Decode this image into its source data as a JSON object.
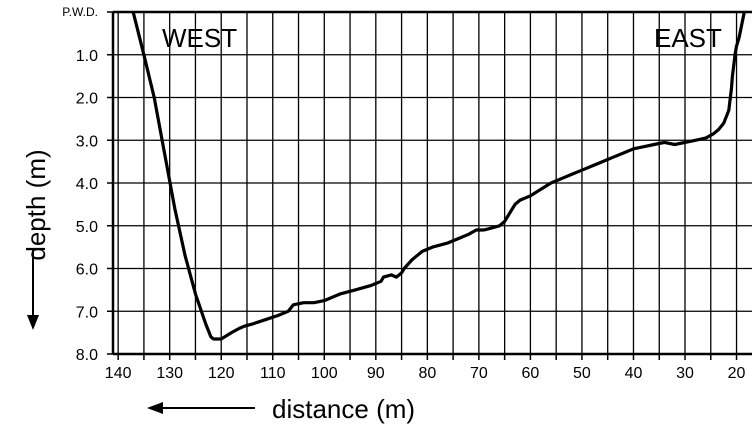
{
  "chart_data": {
    "type": "line",
    "x": [
      137.5,
      135,
      133,
      131,
      129,
      127,
      125,
      123,
      122,
      121.5,
      121,
      120,
      118,
      116.5,
      115.5,
      114,
      111.5,
      109,
      107,
      106,
      104,
      102,
      100,
      97,
      94,
      91,
      89,
      88.5,
      87,
      86,
      85,
      84.5,
      83,
      82,
      81,
      79,
      76,
      74,
      72,
      70.5,
      69,
      67.5,
      66,
      65,
      64,
      63,
      62,
      60,
      58,
      56,
      54,
      52,
      50,
      48,
      46,
      44,
      42,
      40,
      38,
      36,
      34,
      32,
      30,
      28,
      26,
      24.5,
      23.5,
      22.5,
      21.5,
      21,
      20.8,
      20.5,
      20.3,
      20,
      19.5,
      19,
      18.5
    ],
    "y": [
      -0.2,
      1.0,
      2.0,
      3.3,
      4.6,
      5.7,
      6.6,
      7.3,
      7.6,
      7.65,
      7.65,
      7.65,
      7.5,
      7.4,
      7.35,
      7.3,
      7.2,
      7.1,
      7.0,
      6.85,
      6.8,
      6.8,
      6.75,
      6.6,
      6.5,
      6.4,
      6.3,
      6.2,
      6.15,
      6.2,
      6.1,
      6.0,
      5.8,
      5.7,
      5.6,
      5.5,
      5.4,
      5.3,
      5.2,
      5.1,
      5.1,
      5.05,
      5.0,
      4.9,
      4.7,
      4.5,
      4.4,
      4.3,
      4.15,
      4.0,
      3.9,
      3.8,
      3.7,
      3.6,
      3.5,
      3.4,
      3.3,
      3.2,
      3.15,
      3.1,
      3.05,
      3.1,
      3.05,
      3.0,
      2.95,
      2.85,
      2.75,
      2.6,
      2.3,
      1.8,
      1.5,
      1.2,
      1.0,
      0.8,
      0.6,
      0.3,
      0.0
    ],
    "x_ticks": [
      140,
      130,
      120,
      110,
      100,
      90,
      80,
      70,
      60,
      50,
      40,
      30,
      20
    ],
    "x_tick_labels": [
      "140",
      "130",
      "120",
      "110",
      "100",
      "90",
      "80",
      "70",
      "60",
      "50",
      "40",
      "30",
      "20"
    ],
    "y_ticks": [
      0,
      1,
      2,
      3,
      4,
      5,
      6,
      7,
      8
    ],
    "y_tick_labels": [
      "P.W.D.",
      "1.0",
      "2.0",
      "3.0",
      "4.0",
      "5.0",
      "6.0",
      "7.0",
      "8.0"
    ],
    "xlabel": "distance (m)",
    "ylabel": "depth (m)",
    "xlim": [
      141,
      17
    ],
    "ylim": [
      0,
      8
    ],
    "x_grid_step": 5,
    "y_grid_step": 1,
    "grid": true,
    "x_reversed": true,
    "y_inverted": true,
    "annotations": [
      {
        "text": "WEST",
        "position": "top-left"
      },
      {
        "text": "EAST",
        "position": "top-right"
      }
    ],
    "line_color": "#000000"
  }
}
